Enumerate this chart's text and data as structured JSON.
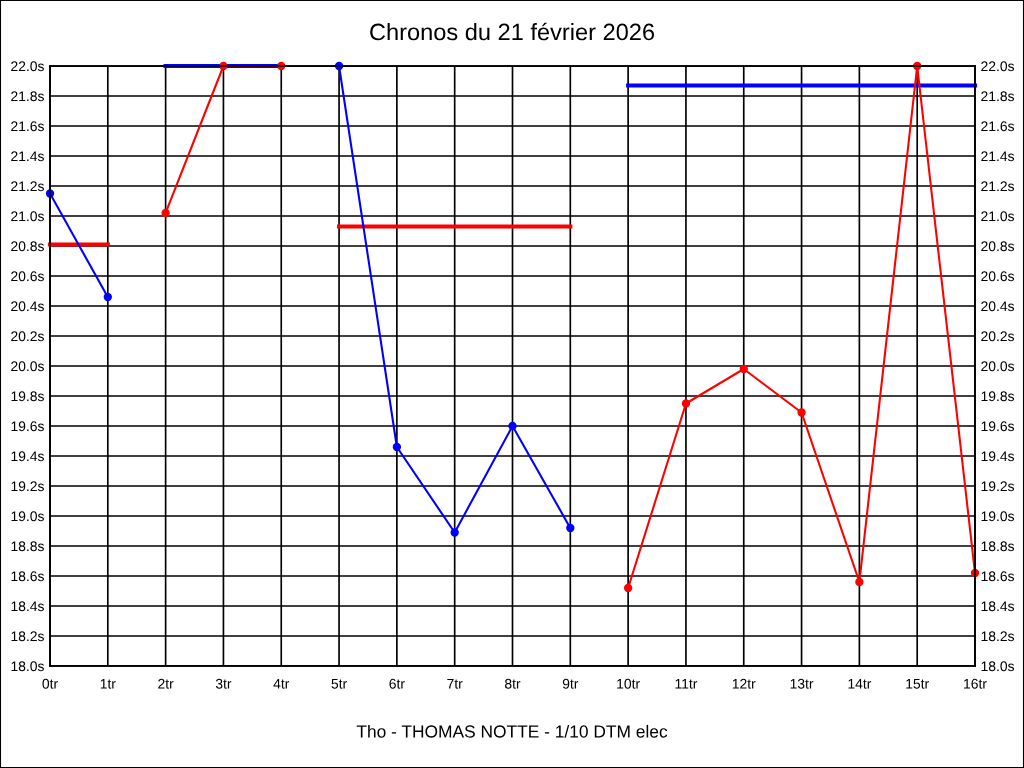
{
  "chart_data": {
    "type": "line",
    "title": "Chronos du 21 février 2026",
    "xlabel": "Tho - THOMAS NOTTE - 1/10 DTM elec",
    "xlim": [
      0,
      16
    ],
    "xticks": [
      {
        "value": 0,
        "label": "0tr"
      },
      {
        "value": 1,
        "label": "1tr"
      },
      {
        "value": 2,
        "label": "2tr"
      },
      {
        "value": 3,
        "label": "3tr"
      },
      {
        "value": 4,
        "label": "4tr"
      },
      {
        "value": 5,
        "label": "5tr"
      },
      {
        "value": 6,
        "label": "6tr"
      },
      {
        "value": 7,
        "label": "7tr"
      },
      {
        "value": 8,
        "label": "8tr"
      },
      {
        "value": 9,
        "label": "9tr"
      },
      {
        "value": 10,
        "label": "10tr"
      },
      {
        "value": 11,
        "label": "11tr"
      },
      {
        "value": 12,
        "label": "12tr"
      },
      {
        "value": 13,
        "label": "13tr"
      },
      {
        "value": 14,
        "label": "14tr"
      },
      {
        "value": 15,
        "label": "15tr"
      },
      {
        "value": 16,
        "label": "16tr"
      }
    ],
    "ylim": [
      18,
      22
    ],
    "yticks": [
      {
        "value": 18.0,
        "label": "18.0s"
      },
      {
        "value": 18.2,
        "label": "18.2s"
      },
      {
        "value": 18.4,
        "label": "18.4s"
      },
      {
        "value": 18.6,
        "label": "18.6s"
      },
      {
        "value": 18.8,
        "label": "18.8s"
      },
      {
        "value": 19.0,
        "label": "19.0s"
      },
      {
        "value": 19.2,
        "label": "19.2s"
      },
      {
        "value": 19.4,
        "label": "19.4s"
      },
      {
        "value": 19.6,
        "label": "19.6s"
      },
      {
        "value": 19.8,
        "label": "19.8s"
      },
      {
        "value": 20.0,
        "label": "20.0s"
      },
      {
        "value": 20.2,
        "label": "20.2s"
      },
      {
        "value": 20.4,
        "label": "20.4s"
      },
      {
        "value": 20.6,
        "label": "20.6s"
      },
      {
        "value": 20.8,
        "label": "20.8s"
      },
      {
        "value": 21.0,
        "label": "21.0s"
      },
      {
        "value": 21.2,
        "label": "21.2s"
      },
      {
        "value": 21.4,
        "label": "21.4s"
      },
      {
        "value": 21.6,
        "label": "21.6s"
      },
      {
        "value": 21.8,
        "label": "21.8s"
      },
      {
        "value": 22.0,
        "label": "22.0s"
      }
    ],
    "y2lim": [
      18,
      22
    ],
    "y2ticks": [
      {
        "value": 18.0,
        "label": "18.0s"
      },
      {
        "value": 18.2,
        "label": "18.2s"
      },
      {
        "value": 18.4,
        "label": "18.4s"
      },
      {
        "value": 18.6,
        "label": "18.6s"
      },
      {
        "value": 18.8,
        "label": "18.8s"
      },
      {
        "value": 19.0,
        "label": "19.0s"
      },
      {
        "value": 19.2,
        "label": "19.2s"
      },
      {
        "value": 19.4,
        "label": "19.4s"
      },
      {
        "value": 19.6,
        "label": "19.6s"
      },
      {
        "value": 19.8,
        "label": "19.8s"
      },
      {
        "value": 20.0,
        "label": "20.0s"
      },
      {
        "value": 20.2,
        "label": "20.2s"
      },
      {
        "value": 20.4,
        "label": "20.4s"
      },
      {
        "value": 20.6,
        "label": "20.6s"
      },
      {
        "value": 20.8,
        "label": "20.8s"
      },
      {
        "value": 21.0,
        "label": "21.0s"
      },
      {
        "value": 21.2,
        "label": "21.2s"
      },
      {
        "value": 21.4,
        "label": "21.4s"
      },
      {
        "value": 21.6,
        "label": "21.6s"
      },
      {
        "value": 21.8,
        "label": "21.8s"
      },
      {
        "value": 22.0,
        "label": "22.0s"
      }
    ],
    "grid": true,
    "marker": "circle",
    "line_style": "solid",
    "series": [
      {
        "color": "#0000ff",
        "x": [
          0,
          1
        ],
        "values": [
          21.15,
          20.46
        ]
      },
      {
        "color": "#ff0000",
        "x": [
          0,
          1
        ],
        "values": [
          20.81,
          20.81
        ],
        "marker": "none"
      },
      {
        "color": "#ff0000",
        "x": [
          2,
          3,
          4
        ],
        "values": [
          21.02,
          22.0,
          22.0
        ]
      },
      {
        "color": "#0000ff",
        "x": [
          2,
          4
        ],
        "values": [
          22.0,
          22.0
        ],
        "marker": "none"
      },
      {
        "color": "#0000ff",
        "x": [
          5,
          6,
          7,
          8,
          9
        ],
        "values": [
          22.0,
          19.46,
          18.89,
          19.6,
          18.92
        ]
      },
      {
        "color": "#ff0000",
        "x": [
          5,
          9
        ],
        "values": [
          20.93,
          20.93
        ],
        "marker": "none"
      },
      {
        "color": "#ff0000",
        "x": [
          10,
          11,
          12,
          13,
          14,
          15,
          16
        ],
        "values": [
          18.52,
          19.75,
          19.98,
          19.69,
          18.56,
          22.0,
          18.62
        ]
      },
      {
        "color": "#0000ff",
        "x": [
          10,
          16
        ],
        "values": [
          21.87,
          21.87
        ],
        "marker": "none"
      }
    ]
  }
}
